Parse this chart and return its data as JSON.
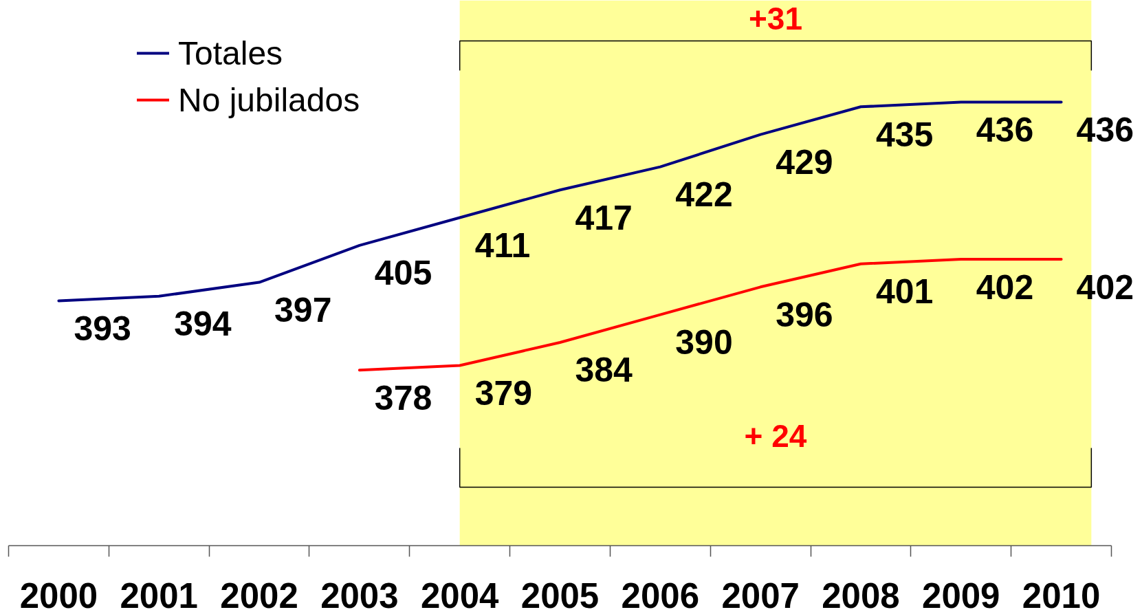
{
  "chart_data": {
    "type": "line",
    "x": [
      2000,
      2001,
      2002,
      2003,
      2004,
      2005,
      2006,
      2007,
      2008,
      2009,
      2010
    ],
    "series": [
      {
        "name": "Totales",
        "color": "#000080",
        "values": [
          393,
          394,
          397,
          405,
          411,
          417,
          422,
          429,
          435,
          436,
          436
        ]
      },
      {
        "name": "No jubilados",
        "color": "#ff0000",
        "values": [
          null,
          null,
          null,
          378,
          379,
          384,
          390,
          396,
          401,
          402,
          402
        ]
      }
    ],
    "xlim": [
      1999.5,
      2010.5
    ],
    "xticks": [
      2000,
      2001,
      2002,
      2003,
      2004,
      2005,
      2006,
      2007,
      2008,
      2009,
      2010
    ],
    "tick_labels": "x",
    "data_labels": true,
    "legend": "top left",
    "bands": [
      {
        "axis": "x",
        "from": 2004,
        "to": 2010.3,
        "color": "#ffff99"
      }
    ],
    "annotations": [
      "+31",
      "+ 24"
    ]
  }
}
